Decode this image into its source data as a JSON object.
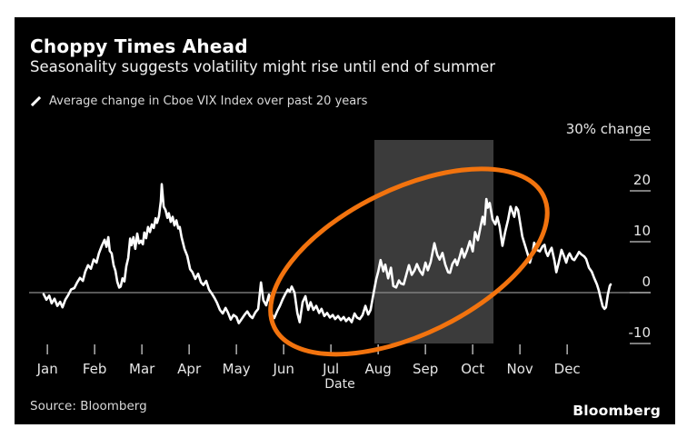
{
  "frame": {
    "title": "Choppy Times Ahead",
    "subtitle": "Seasonality suggests volatility might rise until end of summer",
    "source": "Source: Bloomberg",
    "brand": "Bloomberg"
  },
  "legend": {
    "marker": "line-slash-icon",
    "label": "Average change in Cboe VIX Index over past 20 years"
  },
  "colors": {
    "background": "#000000",
    "line": "#ffffff",
    "highlight_band": "#3b3b3b",
    "zero_line": "#8c8c8c",
    "tick": "#a6a6a6",
    "tick_text": "#e6e6e6",
    "annotation": "#f2730e"
  },
  "chart_data": {
    "type": "line",
    "title": "Choppy Times Ahead",
    "subtitle": "Seasonality suggests volatility might rise until end of summer",
    "x_axis": {
      "label": "Date",
      "tick_labels": [
        "Jan",
        "Feb",
        "Mar",
        "Apr",
        "May",
        "Jun",
        "Jul",
        "Aug",
        "Sep",
        "Oct",
        "Nov",
        "Dec"
      ],
      "range_months": [
        0,
        12
      ]
    },
    "y_axis": {
      "side": "right",
      "unit": "% change",
      "range": [
        -12,
        32
      ],
      "ticks": [
        {
          "value": 30,
          "label": "30% change"
        },
        {
          "value": 20,
          "label": "20"
        },
        {
          "value": 10,
          "label": "10"
        },
        {
          "value": 0,
          "label": "0"
        },
        {
          "value": -10,
          "label": "-10"
        }
      ]
    },
    "zero_line": true,
    "grid": false,
    "highlight_band": {
      "x0_month": 7.0,
      "x1_month": 9.52,
      "color": "#3b3b3b"
    },
    "annotation_ellipse": {
      "cx_month": 7.73,
      "cy_value": 6.1,
      "rx_months": 3.17,
      "ry_percent": 14.3,
      "rotation_deg": -26,
      "color": "#f2730e",
      "stroke_width": 5
    },
    "series": [
      {
        "name": "Average change in Cboe VIX Index over past 20 years",
        "color": "#ffffff",
        "points": [
          [
            0.0,
            -0.3
          ],
          [
            0.06,
            -1.4
          ],
          [
            0.12,
            -0.6
          ],
          [
            0.17,
            -2.1
          ],
          [
            0.23,
            -1.2
          ],
          [
            0.29,
            -2.6
          ],
          [
            0.35,
            -1.8
          ],
          [
            0.4,
            -2.9
          ],
          [
            0.46,
            -1.4
          ],
          [
            0.52,
            -0.5
          ],
          [
            0.58,
            0.6
          ],
          [
            0.65,
            0.9
          ],
          [
            0.71,
            2.0
          ],
          [
            0.77,
            2.9
          ],
          [
            0.83,
            2.3
          ],
          [
            0.88,
            4.1
          ],
          [
            0.94,
            5.4
          ],
          [
            1.0,
            4.7
          ],
          [
            1.06,
            6.5
          ],
          [
            1.12,
            5.9
          ],
          [
            1.17,
            7.7
          ],
          [
            1.23,
            9.2
          ],
          [
            1.29,
            10.4
          ],
          [
            1.33,
            9.0
          ],
          [
            1.37,
            10.9
          ],
          [
            1.4,
            8.2
          ],
          [
            1.44,
            7.7
          ],
          [
            1.48,
            5.4
          ],
          [
            1.52,
            4.3
          ],
          [
            1.56,
            2.1
          ],
          [
            1.6,
            1.0
          ],
          [
            1.63,
            1.2
          ],
          [
            1.67,
            2.8
          ],
          [
            1.71,
            2.2
          ],
          [
            1.75,
            5.2
          ],
          [
            1.79,
            6.8
          ],
          [
            1.83,
            10.6
          ],
          [
            1.86,
            9.3
          ],
          [
            1.9,
            10.9
          ],
          [
            1.94,
            8.6
          ],
          [
            1.98,
            11.6
          ],
          [
            2.02,
            9.7
          ],
          [
            2.06,
            10.2
          ],
          [
            2.1,
            9.5
          ],
          [
            2.13,
            11.8
          ],
          [
            2.17,
            10.7
          ],
          [
            2.21,
            12.9
          ],
          [
            2.25,
            11.9
          ],
          [
            2.29,
            13.4
          ],
          [
            2.33,
            12.7
          ],
          [
            2.37,
            14.6
          ],
          [
            2.4,
            13.7
          ],
          [
            2.44,
            15.0
          ],
          [
            2.48,
            18.0
          ],
          [
            2.5,
            21.3
          ],
          [
            2.54,
            16.9
          ],
          [
            2.58,
            16.2
          ],
          [
            2.62,
            14.7
          ],
          [
            2.65,
            15.6
          ],
          [
            2.69,
            13.9
          ],
          [
            2.73,
            14.9
          ],
          [
            2.77,
            13.2
          ],
          [
            2.81,
            14.2
          ],
          [
            2.85,
            12.6
          ],
          [
            2.88,
            12.9
          ],
          [
            2.92,
            10.9
          ],
          [
            2.98,
            8.6
          ],
          [
            3.04,
            7.2
          ],
          [
            3.1,
            4.6
          ],
          [
            3.15,
            4.0
          ],
          [
            3.21,
            2.7
          ],
          [
            3.27,
            3.7
          ],
          [
            3.33,
            2.0
          ],
          [
            3.38,
            1.5
          ],
          [
            3.44,
            2.3
          ],
          [
            3.5,
            0.6
          ],
          [
            3.56,
            -0.2
          ],
          [
            3.62,
            -1.1
          ],
          [
            3.67,
            -2.0
          ],
          [
            3.73,
            -3.4
          ],
          [
            3.79,
            -4.1
          ],
          [
            3.85,
            -3.0
          ],
          [
            3.9,
            -3.9
          ],
          [
            3.96,
            -5.3
          ],
          [
            4.02,
            -4.4
          ],
          [
            4.08,
            -4.8
          ],
          [
            4.13,
            -6.0
          ],
          [
            4.19,
            -5.2
          ],
          [
            4.25,
            -4.4
          ],
          [
            4.31,
            -3.7
          ],
          [
            4.37,
            -4.6
          ],
          [
            4.42,
            -5.0
          ],
          [
            4.48,
            -3.9
          ],
          [
            4.54,
            -3.2
          ],
          [
            4.6,
            2.0
          ],
          [
            4.65,
            -1.5
          ],
          [
            4.71,
            -2.5
          ],
          [
            4.77,
            -0.4
          ],
          [
            4.83,
            -4.3
          ],
          [
            4.88,
            -5.0
          ],
          [
            4.94,
            -3.7
          ],
          [
            5.0,
            -2.6
          ],
          [
            5.06,
            -1.3
          ],
          [
            5.12,
            -0.2
          ],
          [
            5.17,
            0.6
          ],
          [
            5.21,
            0.2
          ],
          [
            5.25,
            1.2
          ],
          [
            5.31,
            0.0
          ],
          [
            5.37,
            -4.0
          ],
          [
            5.42,
            -5.8
          ],
          [
            5.48,
            -1.9
          ],
          [
            5.54,
            -0.7
          ],
          [
            5.6,
            -3.4
          ],
          [
            5.65,
            -1.9
          ],
          [
            5.71,
            -3.4
          ],
          [
            5.77,
            -2.6
          ],
          [
            5.83,
            -4.0
          ],
          [
            5.88,
            -3.2
          ],
          [
            5.94,
            -4.6
          ],
          [
            6.0,
            -4.0
          ],
          [
            6.06,
            -4.9
          ],
          [
            6.12,
            -4.4
          ],
          [
            6.17,
            -5.2
          ],
          [
            6.23,
            -4.6
          ],
          [
            6.29,
            -5.4
          ],
          [
            6.35,
            -4.8
          ],
          [
            6.4,
            -5.6
          ],
          [
            6.46,
            -5.0
          ],
          [
            6.52,
            -5.8
          ],
          [
            6.58,
            -4.1
          ],
          [
            6.63,
            -4.9
          ],
          [
            6.69,
            -5.2
          ],
          [
            6.75,
            -4.4
          ],
          [
            6.81,
            -2.6
          ],
          [
            6.87,
            -4.3
          ],
          [
            6.92,
            -3.4
          ],
          [
            6.98,
            -0.2
          ],
          [
            7.04,
            2.7
          ],
          [
            7.08,
            4.1
          ],
          [
            7.13,
            6.4
          ],
          [
            7.19,
            4.2
          ],
          [
            7.23,
            5.5
          ],
          [
            7.29,
            2.8
          ],
          [
            7.35,
            4.9
          ],
          [
            7.4,
            1.3
          ],
          [
            7.46,
            1.0
          ],
          [
            7.52,
            2.4
          ],
          [
            7.56,
            1.8
          ],
          [
            7.62,
            1.6
          ],
          [
            7.67,
            3.3
          ],
          [
            7.73,
            5.4
          ],
          [
            7.79,
            3.5
          ],
          [
            7.85,
            4.4
          ],
          [
            7.9,
            5.6
          ],
          [
            7.96,
            4.3
          ],
          [
            8.02,
            3.5
          ],
          [
            8.08,
            5.9
          ],
          [
            8.13,
            4.4
          ],
          [
            8.19,
            6.0
          ],
          [
            8.27,
            9.7
          ],
          [
            8.33,
            7.4
          ],
          [
            8.38,
            6.5
          ],
          [
            8.44,
            7.8
          ],
          [
            8.5,
            5.5
          ],
          [
            8.56,
            4.0
          ],
          [
            8.6,
            3.9
          ],
          [
            8.65,
            5.6
          ],
          [
            8.71,
            6.5
          ],
          [
            8.75,
            5.4
          ],
          [
            8.81,
            7.2
          ],
          [
            8.85,
            8.6
          ],
          [
            8.9,
            6.9
          ],
          [
            8.96,
            8.3
          ],
          [
            9.02,
            10.1
          ],
          [
            9.08,
            8.1
          ],
          [
            9.13,
            11.9
          ],
          [
            9.19,
            10.3
          ],
          [
            9.25,
            13.1
          ],
          [
            9.29,
            14.9
          ],
          [
            9.33,
            13.4
          ],
          [
            9.37,
            18.4
          ],
          [
            9.4,
            16.7
          ],
          [
            9.44,
            17.6
          ],
          [
            9.5,
            14.4
          ],
          [
            9.56,
            13.4
          ],
          [
            9.6,
            14.9
          ],
          [
            9.65,
            13.0
          ],
          [
            9.71,
            9.2
          ],
          [
            9.77,
            12.0
          ],
          [
            9.83,
            14.4
          ],
          [
            9.88,
            16.9
          ],
          [
            9.92,
            15.9
          ],
          [
            9.96,
            14.9
          ],
          [
            10.0,
            16.8
          ],
          [
            10.04,
            16.2
          ],
          [
            10.08,
            13.9
          ],
          [
            10.13,
            11.0
          ],
          [
            10.19,
            9.2
          ],
          [
            10.25,
            7.4
          ],
          [
            10.29,
            5.9
          ],
          [
            10.35,
            8.0
          ],
          [
            10.38,
            9.8
          ],
          [
            10.44,
            8.4
          ],
          [
            10.5,
            8.1
          ],
          [
            10.56,
            9.1
          ],
          [
            10.6,
            9.4
          ],
          [
            10.63,
            8.0
          ],
          [
            10.67,
            7.2
          ],
          [
            10.71,
            8.1
          ],
          [
            10.75,
            8.8
          ],
          [
            10.81,
            6.3
          ],
          [
            10.85,
            4.0
          ],
          [
            10.9,
            5.9
          ],
          [
            10.96,
            8.4
          ],
          [
            11.02,
            7.0
          ],
          [
            11.06,
            5.9
          ],
          [
            11.1,
            7.2
          ],
          [
            11.13,
            7.7
          ],
          [
            11.19,
            6.6
          ],
          [
            11.23,
            6.4
          ],
          [
            11.29,
            7.3
          ],
          [
            11.33,
            8.0
          ],
          [
            11.38,
            7.5
          ],
          [
            11.44,
            7.1
          ],
          [
            11.48,
            6.6
          ],
          [
            11.54,
            4.9
          ],
          [
            11.6,
            4.1
          ],
          [
            11.65,
            2.9
          ],
          [
            11.71,
            1.6
          ],
          [
            11.75,
            0.4
          ],
          [
            11.79,
            -1.2
          ],
          [
            11.83,
            -2.7
          ],
          [
            11.87,
            -3.2
          ],
          [
            11.9,
            -2.9
          ],
          [
            11.94,
            -0.4
          ],
          [
            11.98,
            1.3
          ],
          [
            12.0,
            1.6
          ]
        ]
      }
    ]
  }
}
